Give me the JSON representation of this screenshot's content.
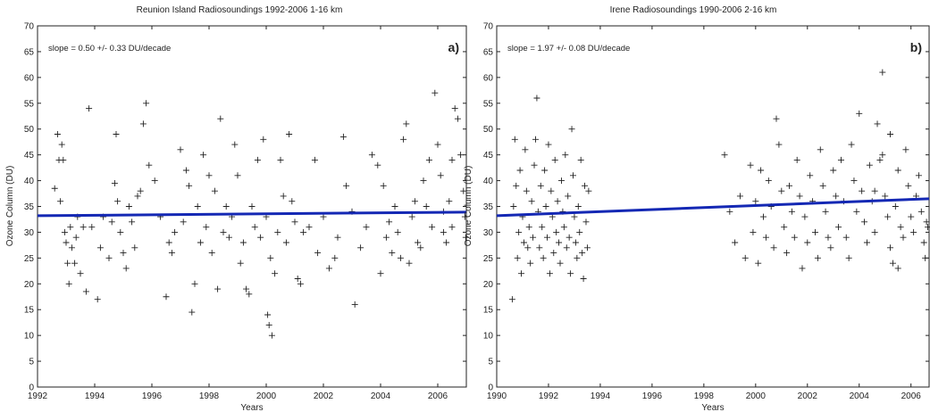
{
  "chart_data": [
    {
      "type": "scatter",
      "panel_label": "a)",
      "title": "Reunion Island Radiosoundings 1992-2006 1-16 km",
      "xlabel": "Years",
      "ylabel": "Ozone Column (DU)",
      "annotation": "slope = 0.50 +/- 0.33 DU/decade",
      "xlim": [
        1992,
        2007
      ],
      "ylim": [
        0,
        70
      ],
      "xticks": [
        1992,
        1994,
        1996,
        1998,
        2000,
        2002,
        2004,
        2006
      ],
      "yticks": [
        0,
        5,
        10,
        15,
        20,
        25,
        30,
        35,
        40,
        45,
        50,
        55,
        60,
        65,
        70
      ],
      "marker": "+",
      "marker_color": "#222222",
      "trend": {
        "x": [
          1992,
          2007
        ],
        "y": [
          33.2,
          33.9
        ],
        "color": "#1428b4"
      },
      "x": [
        1992.6,
        1992.7,
        1992.75,
        1992.8,
        1992.85,
        1992.9,
        1992.95,
        1993.0,
        1993.05,
        1993.1,
        1993.15,
        1993.2,
        1993.3,
        1993.35,
        1993.4,
        1993.5,
        1993.6,
        1993.7,
        1993.8,
        1993.9,
        1994.1,
        1994.2,
        1994.3,
        1994.5,
        1994.6,
        1994.7,
        1994.75,
        1994.8,
        1994.9,
        1995.0,
        1995.1,
        1995.2,
        1995.3,
        1995.4,
        1995.5,
        1995.6,
        1995.7,
        1995.8,
        1995.9,
        1996.1,
        1996.3,
        1996.5,
        1996.6,
        1996.7,
        1996.8,
        1997.0,
        1997.1,
        1997.2,
        1997.3,
        1997.4,
        1997.5,
        1997.6,
        1997.7,
        1997.8,
        1997.9,
        1998.0,
        1998.1,
        1998.2,
        1998.3,
        1998.4,
        1998.5,
        1998.6,
        1998.7,
        1998.8,
        1998.9,
        1999.0,
        1999.1,
        1999.2,
        1999.3,
        1999.4,
        1999.5,
        1999.6,
        1999.7,
        1999.8,
        1999.9,
        2000.0,
        2000.05,
        2000.1,
        2000.15,
        2000.2,
        2000.3,
        2000.4,
        2000.5,
        2000.6,
        2000.7,
        2000.8,
        2000.9,
        2001.0,
        2001.1,
        2001.2,
        2001.3,
        2001.5,
        2001.7,
        2001.8,
        2002.0,
        2002.2,
        2002.4,
        2002.5,
        2002.7,
        2002.8,
        2003.0,
        2003.1,
        2003.3,
        2003.5,
        2003.7,
        2003.9,
        2004.0,
        2004.1,
        2004.2,
        2004.3,
        2004.4,
        2004.5,
        2004.6,
        2004.7,
        2004.8,
        2004.9,
        2005.0,
        2005.1,
        2005.2,
        2005.3,
        2005.4,
        2005.5,
        2005.6,
        2005.7,
        2005.8,
        2005.9,
        2006.0,
        2006.1,
        2006.2,
        2006.3,
        2006.4,
        2006.5,
        2006.6,
        2006.7,
        2006.8,
        2006.9,
        2006.95,
        2006.98,
        2006.5,
        2006.2
      ],
      "y": [
        38.5,
        49,
        44,
        36,
        47,
        44,
        30,
        28,
        24,
        20,
        31,
        27,
        24,
        29,
        33,
        22,
        31,
        18.5,
        54,
        31,
        17,
        27,
        33,
        25,
        32,
        39.5,
        49,
        36,
        30,
        26,
        23,
        35,
        32,
        27,
        37,
        38,
        51,
        55,
        43,
        40,
        33,
        17.5,
        28,
        26,
        30,
        46,
        32,
        42,
        39,
        14.5,
        20,
        35,
        28,
        45,
        31,
        41,
        26,
        38,
        19,
        52,
        30,
        35,
        29,
        33,
        47,
        41,
        24,
        28,
        19,
        18,
        35,
        31,
        44,
        29,
        48,
        33,
        14,
        12,
        25,
        10,
        22,
        30,
        44,
        37,
        28,
        49,
        36,
        32,
        21,
        20,
        30,
        31,
        44,
        26,
        33,
        23,
        25,
        29,
        48.5,
        39,
        34,
        16,
        27,
        31,
        45,
        43,
        22,
        39,
        29,
        32,
        26,
        35,
        30,
        25,
        48,
        51,
        24,
        33,
        36,
        28,
        27,
        40,
        35,
        44,
        31,
        57,
        47,
        41,
        30,
        28,
        36,
        44,
        54,
        52,
        45,
        38,
        33,
        29,
        31,
        34
      ]
    },
    {
      "type": "scatter",
      "panel_label": "b)",
      "title": "Irene Radiosoundings 1990-2006 2-16 km",
      "xlabel": "Years",
      "ylabel": "Ozone Column (DU)",
      "annotation": "slope = 1.97 +/- 0.08 DU/decade",
      "xlim": [
        1990,
        2006.7
      ],
      "ylim": [
        0,
        70
      ],
      "xticks": [
        1990,
        1992,
        1994,
        1996,
        1998,
        2000,
        2002,
        2004,
        2006
      ],
      "yticks": [
        0,
        5,
        10,
        15,
        20,
        25,
        30,
        35,
        40,
        45,
        50,
        55,
        60,
        65,
        70
      ],
      "marker": "+",
      "marker_color": "#222222",
      "trend": {
        "x": [
          1990,
          2006.7
        ],
        "y": [
          33.2,
          36.5
        ],
        "color": "#1428b4"
      },
      "x": [
        1990.6,
        1990.65,
        1990.7,
        1990.75,
        1990.8,
        1990.85,
        1990.9,
        1990.95,
        1991.0,
        1991.05,
        1991.1,
        1991.15,
        1991.2,
        1991.25,
        1991.3,
        1991.35,
        1991.4,
        1991.45,
        1991.5,
        1991.55,
        1991.6,
        1991.65,
        1991.7,
        1991.75,
        1991.8,
        1991.85,
        1991.9,
        1991.95,
        1992.0,
        1992.05,
        1992.1,
        1992.15,
        1992.2,
        1992.25,
        1992.3,
        1992.35,
        1992.4,
        1992.45,
        1992.5,
        1992.55,
        1992.6,
        1992.65,
        1992.7,
        1992.75,
        1992.8,
        1992.85,
        1992.9,
        1992.95,
        1993.0,
        1993.05,
        1993.1,
        1993.15,
        1993.2,
        1993.25,
        1993.3,
        1993.35,
        1993.4,
        1993.45,
        1993.5,
        1993.55,
        1998.8,
        1999.0,
        1999.2,
        1999.4,
        1999.6,
        1999.8,
        1999.9,
        2000.0,
        2000.1,
        2000.2,
        2000.3,
        2000.4,
        2000.5,
        2000.6,
        2000.7,
        2000.8,
        2000.9,
        2001.0,
        2001.1,
        2001.2,
        2001.3,
        2001.4,
        2001.5,
        2001.6,
        2001.7,
        2001.8,
        2001.9,
        2002.0,
        2002.1,
        2002.2,
        2002.3,
        2002.4,
        2002.5,
        2002.6,
        2002.7,
        2002.8,
        2002.9,
        2003.0,
        2003.1,
        2003.2,
        2003.3,
        2003.4,
        2003.5,
        2003.6,
        2003.7,
        2003.8,
        2003.9,
        2004.0,
        2004.1,
        2004.2,
        2004.3,
        2004.4,
        2004.5,
        2004.6,
        2004.7,
        2004.8,
        2004.9,
        2005.0,
        2005.1,
        2005.2,
        2005.3,
        2005.4,
        2005.5,
        2005.6,
        2005.7,
        2005.8,
        2005.9,
        2006.0,
        2006.1,
        2006.2,
        2006.3,
        2006.4,
        2006.5,
        2006.55,
        2006.6,
        2006.65,
        2005.5,
        2005.2,
        2004.9,
        2004.6
      ],
      "y": [
        17,
        35,
        48,
        39,
        25,
        30,
        42,
        22,
        33,
        28,
        46,
        38,
        27,
        31,
        24,
        36,
        29,
        43,
        48,
        56,
        34,
        27,
        39,
        31,
        25,
        42,
        35,
        29,
        47,
        22,
        38,
        33,
        26,
        44,
        30,
        36,
        28,
        24,
        40,
        34,
        31,
        45,
        27,
        37,
        29,
        22,
        50,
        41,
        33,
        28,
        25,
        35,
        30,
        44,
        26,
        21,
        39,
        32,
        27,
        38,
        45,
        34,
        28,
        37,
        25,
        43,
        30,
        36,
        24,
        42,
        33,
        29,
        40,
        35,
        27,
        52,
        47,
        38,
        31,
        26,
        39,
        34,
        29,
        44,
        37,
        23,
        33,
        28,
        41,
        36,
        30,
        25,
        46,
        39,
        34,
        29,
        27,
        42,
        37,
        31,
        44,
        36,
        29,
        25,
        47,
        40,
        34,
        53,
        38,
        32,
        28,
        43,
        36,
        30,
        51,
        44,
        61,
        37,
        33,
        27,
        24,
        35,
        42,
        31,
        29,
        46,
        39,
        33,
        30,
        37,
        41,
        34,
        28,
        25,
        32,
        31,
        23,
        49,
        45,
        38
      ]
    }
  ]
}
